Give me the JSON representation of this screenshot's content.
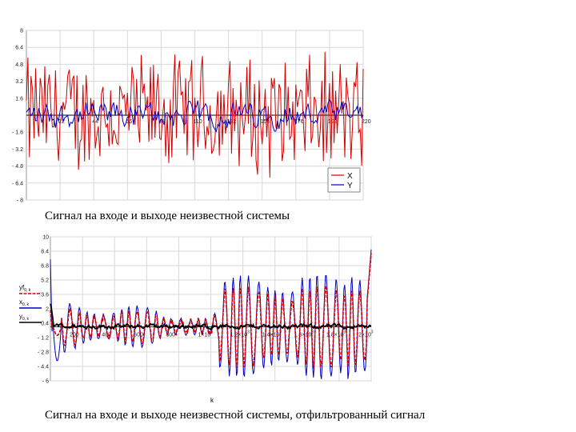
{
  "chart_data": [
    {
      "type": "line",
      "title": "",
      "caption": "Сигнал на входе и выходе неизвестной системы",
      "ylim": [
        -8,
        8
      ],
      "xlim": [
        0,
        220
      ],
      "y_ticks": [
        "8",
        "6.4",
        "4.8",
        "3.2",
        "1.6",
        "- 1.6",
        "- 3.2",
        "- 4.8",
        "- 6.4",
        "- 8"
      ],
      "y_tick_values": [
        8,
        6.4,
        4.8,
        3.2,
        1.6,
        -1.6,
        -3.2,
        -4.8,
        -6.4,
        -8
      ],
      "x_ticks": [
        "22",
        "44",
        "66",
        "88",
        "110",
        "132",
        "154",
        "176",
        "198",
        "220"
      ],
      "x_tick_values": [
        22,
        44,
        66,
        88,
        110,
        132,
        154,
        176,
        198,
        220
      ],
      "grid": true,
      "legend": "bottom-right",
      "series": [
        {
          "name": "X",
          "color": "#d40000",
          "amplitude": 6.4,
          "kind": "noise"
        },
        {
          "name": "Y",
          "color": "#0000c0",
          "amplitude": 1.6,
          "kind": "noise"
        }
      ]
    },
    {
      "type": "line",
      "title": "",
      "caption": "Сигнал на входе и выходе неизвестной системы, отфильтрованный сигнал",
      "xlabel": "k",
      "ylim": [
        -6,
        10
      ],
      "xlim": [
        0,
        2000
      ],
      "y_ticks": [
        "10",
        "8.4",
        "6.8",
        "5.2",
        "3.6",
        "2",
        "0.4",
        "- 1.2",
        "- 2.8",
        "- 4.4",
        "- 6"
      ],
      "y_tick_values": [
        10,
        8.4,
        6.8,
        5.2,
        3.6,
        2,
        0.4,
        -1.2,
        -2.8,
        -4.4,
        -6
      ],
      "x_ticks": [
        {
          "base": "200",
          "exp": ""
        },
        {
          "base": "400",
          "exp": ""
        },
        {
          "base": "600",
          "exp": ""
        },
        {
          "base": "800",
          "exp": ""
        },
        {
          "base": "1×10",
          "exp": "3"
        },
        {
          "base": "1.2×10",
          "exp": "3"
        },
        {
          "base": "1.4×10",
          "exp": "3"
        },
        {
          "base": "1.6×10",
          "exp": "3"
        },
        {
          "base": "1.8×10",
          "exp": "3"
        },
        {
          "base": "2×10",
          "exp": "3"
        }
      ],
      "x_tick_values": [
        200,
        400,
        600,
        800,
        1000,
        1200,
        1400,
        1600,
        1800,
        2000
      ],
      "grid": true,
      "legend": "left",
      "series": [
        {
          "name": "yf",
          "sub": "0, k",
          "color": "#d40000"
        },
        {
          "name": "x",
          "sub": "0, k",
          "color": "#0000c0"
        },
        {
          "name": "y",
          "sub": "0, k",
          "color": "#000000"
        }
      ]
    }
  ]
}
